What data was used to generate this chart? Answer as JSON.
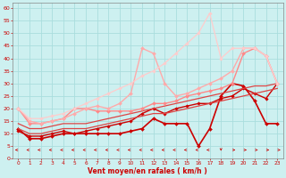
{
  "bg_color": "#cdf0f0",
  "grid_color": "#aadddd",
  "xlabel": "Vent moyen/en rafales ( km/h )",
  "xlabel_color": "#cc0000",
  "tick_color": "#cc0000",
  "xlim": [
    -0.5,
    23.5
  ],
  "ylim": [
    0,
    62
  ],
  "yticks": [
    0,
    5,
    10,
    15,
    20,
    25,
    30,
    35,
    40,
    45,
    50,
    55,
    60
  ],
  "xticks": [
    0,
    1,
    2,
    3,
    4,
    5,
    6,
    7,
    8,
    9,
    10,
    11,
    12,
    13,
    14,
    15,
    16,
    17,
    18,
    19,
    20,
    21,
    22,
    23
  ],
  "series": [
    {
      "x": [
        0,
        1,
        2,
        3,
        4,
        5,
        6,
        7,
        8,
        9,
        10,
        11,
        12,
        13,
        14,
        15,
        16,
        17,
        18,
        19,
        20,
        21,
        22,
        23
      ],
      "y": [
        12,
        8,
        8,
        9,
        10,
        10,
        10,
        10,
        10,
        10,
        11,
        12,
        16,
        14,
        14,
        14,
        5,
        12,
        25,
        30,
        29,
        23,
        14,
        14
      ],
      "color": "#cc0000",
      "lw": 1.2,
      "marker": "D",
      "ms": 2.0
    },
    {
      "x": [
        0,
        1,
        2,
        3,
        4,
        5,
        6,
        7,
        8,
        9,
        10,
        11,
        12,
        13,
        14,
        15,
        16,
        17,
        18,
        19,
        20,
        21,
        22,
        23
      ],
      "y": [
        11,
        9,
        9,
        10,
        11,
        10,
        11,
        12,
        13,
        14,
        15,
        18,
        20,
        18,
        20,
        21,
        22,
        22,
        24,
        25,
        28,
        26,
        24,
        30
      ],
      "color": "#cc0000",
      "lw": 1.0,
      "marker": "D",
      "ms": 1.8
    },
    {
      "x": [
        0,
        1,
        2,
        3,
        4,
        5,
        6,
        7,
        8,
        9,
        10,
        11,
        12,
        13,
        14,
        15,
        16,
        17,
        18,
        19,
        20,
        21,
        22,
        23
      ],
      "y": [
        12,
        10,
        10,
        11,
        12,
        12,
        12,
        13,
        14,
        15,
        16,
        17,
        18,
        18,
        19,
        20,
        21,
        22,
        23,
        24,
        25,
        26,
        27,
        28
      ],
      "color": "#dd4444",
      "lw": 0.9,
      "marker": null,
      "ms": 0
    },
    {
      "x": [
        0,
        1,
        2,
        3,
        4,
        5,
        6,
        7,
        8,
        9,
        10,
        11,
        12,
        13,
        14,
        15,
        16,
        17,
        18,
        19,
        20,
        21,
        22,
        23
      ],
      "y": [
        14,
        12,
        12,
        13,
        14,
        14,
        14,
        15,
        16,
        17,
        18,
        19,
        20,
        21,
        22,
        23,
        24,
        25,
        26,
        27,
        28,
        29,
        29,
        30
      ],
      "color": "#dd4444",
      "lw": 0.9,
      "marker": null,
      "ms": 0
    },
    {
      "x": [
        0,
        1,
        2,
        3,
        4,
        5,
        6,
        7,
        8,
        9,
        10,
        11,
        12,
        13,
        14,
        15,
        16,
        17,
        18,
        19,
        20,
        21,
        22,
        23
      ],
      "y": [
        20,
        14,
        14,
        15,
        16,
        20,
        20,
        19,
        19,
        19,
        19,
        20,
        22,
        22,
        23,
        25,
        26,
        27,
        28,
        30,
        42,
        44,
        41,
        30
      ],
      "color": "#ff8888",
      "lw": 1.0,
      "marker": "D",
      "ms": 2.0
    },
    {
      "x": [
        0,
        1,
        2,
        3,
        4,
        5,
        6,
        7,
        8,
        9,
        10,
        11,
        12,
        13,
        14,
        15,
        16,
        17,
        18,
        19,
        20,
        21,
        22,
        23
      ],
      "y": [
        20,
        15,
        14,
        15,
        16,
        18,
        20,
        21,
        20,
        22,
        26,
        44,
        42,
        30,
        25,
        26,
        28,
        30,
        32,
        35,
        44,
        44,
        41,
        30
      ],
      "color": "#ffaaaa",
      "lw": 1.0,
      "marker": "D",
      "ms": 2.0
    },
    {
      "x": [
        0,
        1,
        2,
        3,
        4,
        5,
        6,
        7,
        8,
        9,
        10,
        11,
        12,
        13,
        14,
        15,
        16,
        17,
        18,
        19,
        20,
        21,
        22,
        23
      ],
      "y": [
        20,
        16,
        16,
        17,
        18,
        20,
        22,
        24,
        26,
        28,
        30,
        33,
        35,
        38,
        42,
        46,
        50,
        58,
        40,
        44,
        44,
        44,
        41,
        30
      ],
      "color": "#ffcccc",
      "lw": 0.9,
      "marker": "D",
      "ms": 1.8
    }
  ],
  "arrow_dirs": [
    -1,
    -1,
    -1,
    -1,
    -1,
    -1,
    -1,
    -1,
    -1,
    -1,
    -1,
    -1,
    -1,
    -1,
    -1,
    -1,
    -1,
    -1,
    0,
    1,
    1,
    1,
    1,
    1
  ]
}
